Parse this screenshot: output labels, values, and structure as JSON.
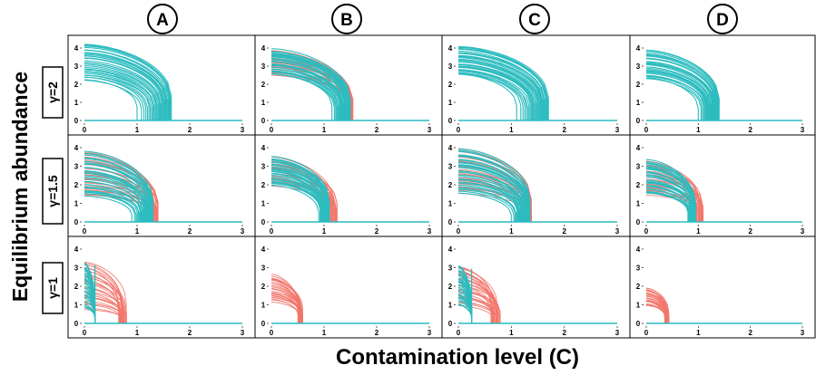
{
  "figure": {
    "xlabel": "Contamination level (C)",
    "ylabel": "Equilibrium abundance",
    "columns": [
      "A",
      "B",
      "C",
      "D"
    ],
    "rows": [
      "γ=2",
      "γ=1.5",
      "γ=1"
    ]
  },
  "colors": {
    "stable": "#2cbcbf",
    "unstable": "#f2756c",
    "frame": "#000000"
  },
  "chart_data": {
    "type": "line",
    "description_of_panels": "grid of 3 rows x 4 columns",
    "xlim": [
      0,
      3
    ],
    "ylim": [
      0,
      4
    ],
    "xticks": [
      0,
      1,
      2,
      3
    ],
    "yticks": [
      0,
      1,
      2,
      3,
      4
    ],
    "panels": [
      {
        "row": 0,
        "col": 0,
        "n_curves": 30,
        "y0_range": [
          2.2,
          4.2
        ],
        "stable_end_range": [
          1.0,
          1.65
        ],
        "red_end_range": [
          1.6,
          1.65
        ],
        "collapse_x": 1.65,
        "lines_red": false
      },
      {
        "row": 0,
        "col": 1,
        "n_curves": 30,
        "y0_range": [
          2.5,
          3.9
        ],
        "stable_end_range": [
          1.15,
          1.5
        ],
        "red_end_range": [
          1.5,
          1.55
        ],
        "collapse_x": 1.5,
        "lines_red": true
      },
      {
        "row": 0,
        "col": 2,
        "n_curves": 30,
        "y0_range": [
          2.5,
          4.1
        ],
        "stable_end_range": [
          1.1,
          1.7
        ],
        "red_end_range": [
          1.7,
          1.72
        ],
        "collapse_x": 1.7,
        "lines_red": false
      },
      {
        "row": 0,
        "col": 3,
        "n_curves": 30,
        "y0_range": [
          2.3,
          3.9
        ],
        "stable_end_range": [
          1.0,
          1.4
        ],
        "red_end_range": [
          1.4,
          1.42
        ],
        "collapse_x": 1.4,
        "lines_red": false
      },
      {
        "row": 1,
        "col": 0,
        "n_curves": 30,
        "y0_range": [
          1.4,
          3.8
        ],
        "stable_end_range": [
          0.9,
          1.3
        ],
        "red_end_range": [
          1.3,
          1.4
        ],
        "collapse_x": 1.3,
        "lines_red": true
      },
      {
        "row": 1,
        "col": 1,
        "n_curves": 30,
        "y0_range": [
          2.0,
          3.5
        ],
        "stable_end_range": [
          0.9,
          1.1
        ],
        "red_end_range": [
          1.1,
          1.25
        ],
        "collapse_x": 1.1,
        "lines_red": true
      },
      {
        "row": 1,
        "col": 2,
        "n_curves": 30,
        "y0_range": [
          1.6,
          3.9
        ],
        "stable_end_range": [
          1.0,
          1.35
        ],
        "red_end_range": [
          1.35,
          1.38
        ],
        "collapse_x": 1.35,
        "lines_red": true
      },
      {
        "row": 1,
        "col": 3,
        "n_curves": 30,
        "y0_range": [
          1.5,
          3.3
        ],
        "stable_end_range": [
          0.8,
          0.95
        ],
        "red_end_range": [
          0.95,
          1.1
        ],
        "collapse_x": 0.95,
        "lines_red": true
      },
      {
        "row": 2,
        "col": 0,
        "n_curves": 30,
        "y0_range": [
          0.8,
          3.3
        ],
        "stable_end_range": [
          0.2,
          0.2
        ],
        "red_end_range": [
          0.65,
          0.8
        ],
        "collapse_x": 0.2,
        "lines_red": true
      },
      {
        "row": 2,
        "col": 1,
        "n_curves": 30,
        "y0_range": [
          1.2,
          2.6
        ],
        "stable_end_range": [
          0.0,
          0.0
        ],
        "red_end_range": [
          0.5,
          0.6
        ],
        "collapse_x": 0.0,
        "lines_red": true
      },
      {
        "row": 2,
        "col": 2,
        "n_curves": 30,
        "y0_range": [
          1.0,
          3.1
        ],
        "stable_end_range": [
          0.25,
          0.25
        ],
        "red_end_range": [
          0.6,
          0.8
        ],
        "collapse_x": 0.25,
        "lines_red": true
      },
      {
        "row": 2,
        "col": 3,
        "n_curves": 30,
        "y0_range": [
          1.0,
          1.9
        ],
        "stable_end_range": [
          0.0,
          0.0
        ],
        "red_end_range": [
          0.35,
          0.45
        ],
        "collapse_x": 0.0,
        "lines_red": true
      }
    ]
  }
}
